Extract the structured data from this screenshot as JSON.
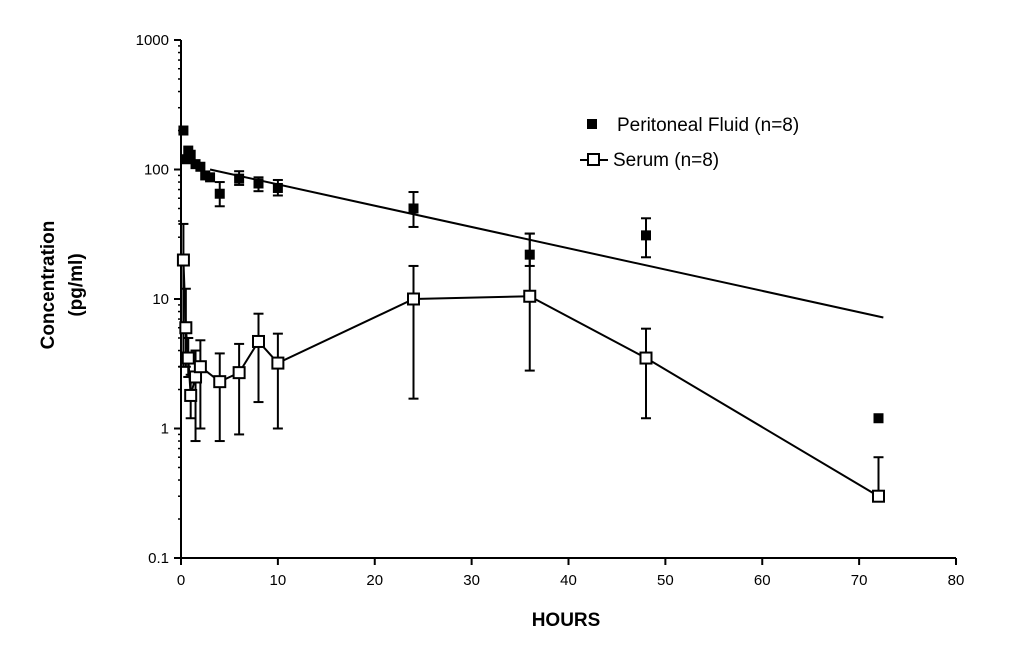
{
  "chart_data": {
    "type": "scatter",
    "title": "",
    "xlabel": "HOURS",
    "ylabel": [
      "Concentration",
      "(pg/ml)"
    ],
    "xlim": [
      0,
      80
    ],
    "ylim": [
      0.1,
      1000
    ],
    "yscale": "log",
    "x_ticks": [
      "0",
      "10",
      "20",
      "30",
      "40",
      "50",
      "60",
      "70",
      "80"
    ],
    "y_ticks": [
      "0.1",
      "1",
      "10",
      "100",
      "1000"
    ],
    "y_tick_values": [
      0.1,
      1,
      10,
      100,
      1000
    ],
    "grid": false,
    "legend_position": "top-right",
    "series": [
      {
        "name": "Peritoneal Fluid (n=8)",
        "marker": "filled-square",
        "color": "#000000",
        "points": [
          {
            "x": 0.25,
            "y": 200
          },
          {
            "x": 0.5,
            "y": 120
          },
          {
            "x": 0.75,
            "y": 140
          },
          {
            "x": 1,
            "y": 130
          },
          {
            "x": 1.5,
            "y": 110
          },
          {
            "x": 2,
            "y": 105
          },
          {
            "x": 2.5,
            "y": 90
          },
          {
            "x": 3,
            "y": 87
          },
          {
            "x": 4,
            "y": 65,
            "err_low": 52,
            "err_high": 80
          },
          {
            "x": 6,
            "y": 85,
            "err_low": 76,
            "err_high": 97
          },
          {
            "x": 8,
            "y": 78,
            "err_low": 68,
            "err_high": 87
          },
          {
            "x": 10,
            "y": 72,
            "err_low": 63,
            "err_high": 83
          },
          {
            "x": 24,
            "y": 50,
            "err_low": 36,
            "err_high": 67
          },
          {
            "x": 36,
            "y": 22,
            "err_low": 18,
            "err_high": 32
          },
          {
            "x": 48,
            "y": 31,
            "err_low": 21,
            "err_high": 42
          },
          {
            "x": 72,
            "y": 1.2
          }
        ],
        "fit_line": [
          {
            "x": 3,
            "y": 100
          },
          {
            "x": 72.5,
            "y": 7.2
          }
        ]
      },
      {
        "name": "Serum (n=8)",
        "marker": "open-square",
        "color": "#000000",
        "connected": true,
        "points": [
          {
            "x": 0.25,
            "y": 20,
            "err_low": 3,
            "err_high": 38
          },
          {
            "x": 0.5,
            "y": 6,
            "err_low": 3,
            "err_high": 12
          },
          {
            "x": 0.75,
            "y": 3.5,
            "err_low": 2.5,
            "err_high": 5
          },
          {
            "x": 1,
            "y": 1.8,
            "err_low": 1.2,
            "err_high": 2.6
          },
          {
            "x": 1.5,
            "y": 2.5,
            "err_low": 0.8,
            "err_high": 4
          },
          {
            "x": 2,
            "y": 3,
            "err_low": 1,
            "err_high": 4.8
          },
          {
            "x": 4,
            "y": 2.3,
            "err_low": 0.8,
            "err_high": 3.8
          },
          {
            "x": 6,
            "y": 2.7,
            "err_low": 0.9,
            "err_high": 4.5
          },
          {
            "x": 8,
            "y": 4.7,
            "err_low": 1.6,
            "err_high": 7.7
          },
          {
            "x": 10,
            "y": 3.2,
            "err_low": 1,
            "err_high": 5.4
          },
          {
            "x": 24,
            "y": 10,
            "err_low": 1.7,
            "err_high": 18
          },
          {
            "x": 36,
            "y": 10.5,
            "err_low": 2.8,
            "err_high": 32
          },
          {
            "x": 48,
            "y": 3.5,
            "err_low": 1.2,
            "err_high": 5.9
          },
          {
            "x": 72,
            "y": 0.3,
            "err_low": 0.3,
            "err_high": 0.6
          }
        ]
      }
    ]
  }
}
